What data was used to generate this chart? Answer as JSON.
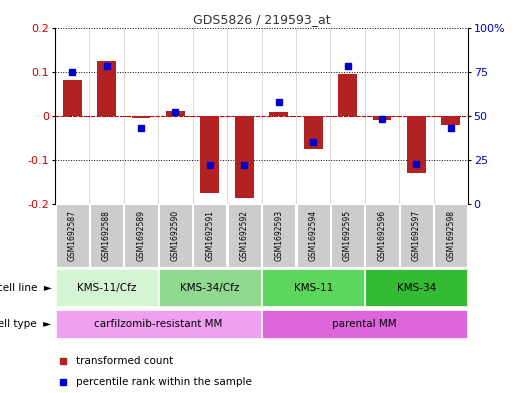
{
  "title": "GDS5826 / 219593_at",
  "samples": [
    "GSM1692587",
    "GSM1692588",
    "GSM1692589",
    "GSM1692590",
    "GSM1692591",
    "GSM1692592",
    "GSM1692593",
    "GSM1692594",
    "GSM1692595",
    "GSM1692596",
    "GSM1692597",
    "GSM1692598"
  ],
  "transformed_count": [
    0.082,
    0.125,
    -0.005,
    0.012,
    -0.175,
    -0.185,
    0.01,
    -0.075,
    0.095,
    -0.01,
    -0.13,
    -0.02
  ],
  "percentile_rank": [
    75,
    78,
    43,
    52,
    22,
    22,
    58,
    35,
    78,
    48,
    23,
    43
  ],
  "ylim_left": [
    -0.2,
    0.2
  ],
  "ylim_right": [
    0,
    100
  ],
  "yticks_left": [
    -0.2,
    -0.1,
    0.0,
    0.1,
    0.2
  ],
  "yticks_right": [
    0,
    25,
    50,
    75,
    100
  ],
  "ytick_labels_right": [
    "0",
    "25",
    "50",
    "75",
    "100%"
  ],
  "bar_color": "#b22222",
  "dot_color": "#0000cc",
  "zero_line_color": "#cc0000",
  "cell_line_groups": [
    {
      "label": "KMS-11/Cfz",
      "start": 0,
      "end": 3,
      "color": "#d4f5d4"
    },
    {
      "label": "KMS-34/Cfz",
      "start": 3,
      "end": 6,
      "color": "#90d890"
    },
    {
      "label": "KMS-11",
      "start": 6,
      "end": 9,
      "color": "#5cd65c"
    },
    {
      "label": "KMS-34",
      "start": 9,
      "end": 12,
      "color": "#33bb33"
    }
  ],
  "cell_type_groups": [
    {
      "label": "carfilzomib-resistant MM",
      "start": 0,
      "end": 6,
      "color": "#f0a0f0"
    },
    {
      "label": "parental MM",
      "start": 6,
      "end": 12,
      "color": "#dd66dd"
    }
  ],
  "cell_line_label": "cell line",
  "cell_type_label": "cell type",
  "legend_items": [
    {
      "label": "transformed count",
      "color": "#b22222"
    },
    {
      "label": "percentile rank within the sample",
      "color": "#0000cc"
    }
  ]
}
